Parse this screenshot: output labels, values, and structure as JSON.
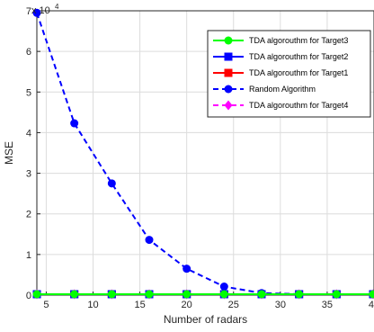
{
  "chart_data": {
    "type": "line",
    "title": "",
    "xlabel": "Number of radars",
    "ylabel": "MSE",
    "y_exponent_label": "x 10",
    "y_exponent_value": "4",
    "xlim": [
      4,
      40
    ],
    "ylim": [
      0,
      70000
    ],
    "xticks": [
      "5",
      "10",
      "15",
      "20",
      "25",
      "30",
      "35",
      "40"
    ],
    "yticks": [
      "0",
      "1",
      "2",
      "3",
      "4",
      "5",
      "6",
      "7"
    ],
    "grid": true,
    "legend_position": "top-right",
    "x": [
      4,
      8,
      12,
      16,
      20,
      24,
      28,
      32,
      36,
      40
    ],
    "series": [
      {
        "name": "TDA algorouthm for Target3",
        "color": "#00ff00",
        "marker": "circle",
        "line": "solid",
        "values": [
          0,
          0,
          0,
          0,
          0,
          0,
          0,
          0,
          0,
          0
        ]
      },
      {
        "name": "TDA algorouthm for Target2",
        "color": "#0000ff",
        "marker": "square",
        "line": "solid",
        "values": [
          0,
          0,
          0,
          0,
          0,
          0,
          0,
          0,
          0,
          0
        ]
      },
      {
        "name": "TDA algorouthm for Target1",
        "color": "#ff0000",
        "marker": "square",
        "line": "solid",
        "values": [
          0,
          0,
          0,
          0,
          0,
          0,
          0,
          0,
          0,
          0
        ]
      },
      {
        "name": "Random Algorithm",
        "color": "#0000ff",
        "marker": "circle",
        "line": "dashed",
        "values": [
          69500,
          42300,
          27500,
          13600,
          6500,
          2100,
          500,
          0,
          0,
          0
        ]
      },
      {
        "name": "TDA algorouthm for Target4",
        "color": "#ff00ff",
        "marker": "diamond",
        "line": "dashed",
        "values": [
          0,
          0,
          0,
          0,
          0,
          0,
          0,
          0,
          0,
          0
        ]
      }
    ]
  }
}
